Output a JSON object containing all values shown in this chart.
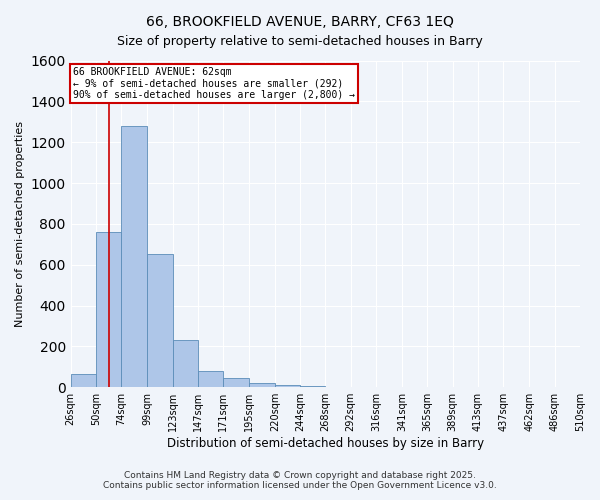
{
  "title": "66, BROOKFIELD AVENUE, BARRY, CF63 1EQ",
  "subtitle": "Size of property relative to semi-detached houses in Barry",
  "xlabel": "Distribution of semi-detached houses by size in Barry",
  "ylabel": "Number of semi-detached properties",
  "bar_color": "#aec6e8",
  "bar_edge_color": "#5b8db8",
  "bin_edges": [
    26,
    50,
    74,
    99,
    123,
    147,
    171,
    195,
    220,
    244,
    268,
    292,
    316,
    341,
    365,
    389,
    413,
    437,
    462,
    486,
    510
  ],
  "bar_heights": [
    65,
    760,
    1280,
    650,
    230,
    80,
    45,
    20,
    10,
    5,
    0,
    0,
    0,
    0,
    0,
    0,
    0,
    0,
    0,
    0
  ],
  "x_tick_labels": [
    "26sqm",
    "50sqm",
    "74sqm",
    "99sqm",
    "123sqm",
    "147sqm",
    "171sqm",
    "195sqm",
    "220sqm",
    "244sqm",
    "268sqm",
    "292sqm",
    "316sqm",
    "341sqm",
    "365sqm",
    "389sqm",
    "413sqm",
    "437sqm",
    "462sqm",
    "486sqm",
    "510sqm"
  ],
  "ylim": [
    0,
    1600
  ],
  "property_line_x": 62,
  "property_line_color": "#cc0000",
  "annotation_text": "66 BROOKFIELD AVENUE: 62sqm\n← 9% of semi-detached houses are smaller (292)\n90% of semi-detached houses are larger (2,800) →",
  "annotation_box_color": "#ffffff",
  "annotation_box_edge_color": "#cc0000",
  "footer_line1": "Contains HM Land Registry data © Crown copyright and database right 2025.",
  "footer_line2": "Contains public sector information licensed under the Open Government Licence v3.0.",
  "background_color": "#f0f4fa",
  "grid_color": "#ffffff",
  "title_fontsize": 10,
  "subtitle_fontsize": 9,
  "tick_fontsize": 7,
  "ylabel_fontsize": 8,
  "xlabel_fontsize": 8.5,
  "footer_fontsize": 6.5
}
